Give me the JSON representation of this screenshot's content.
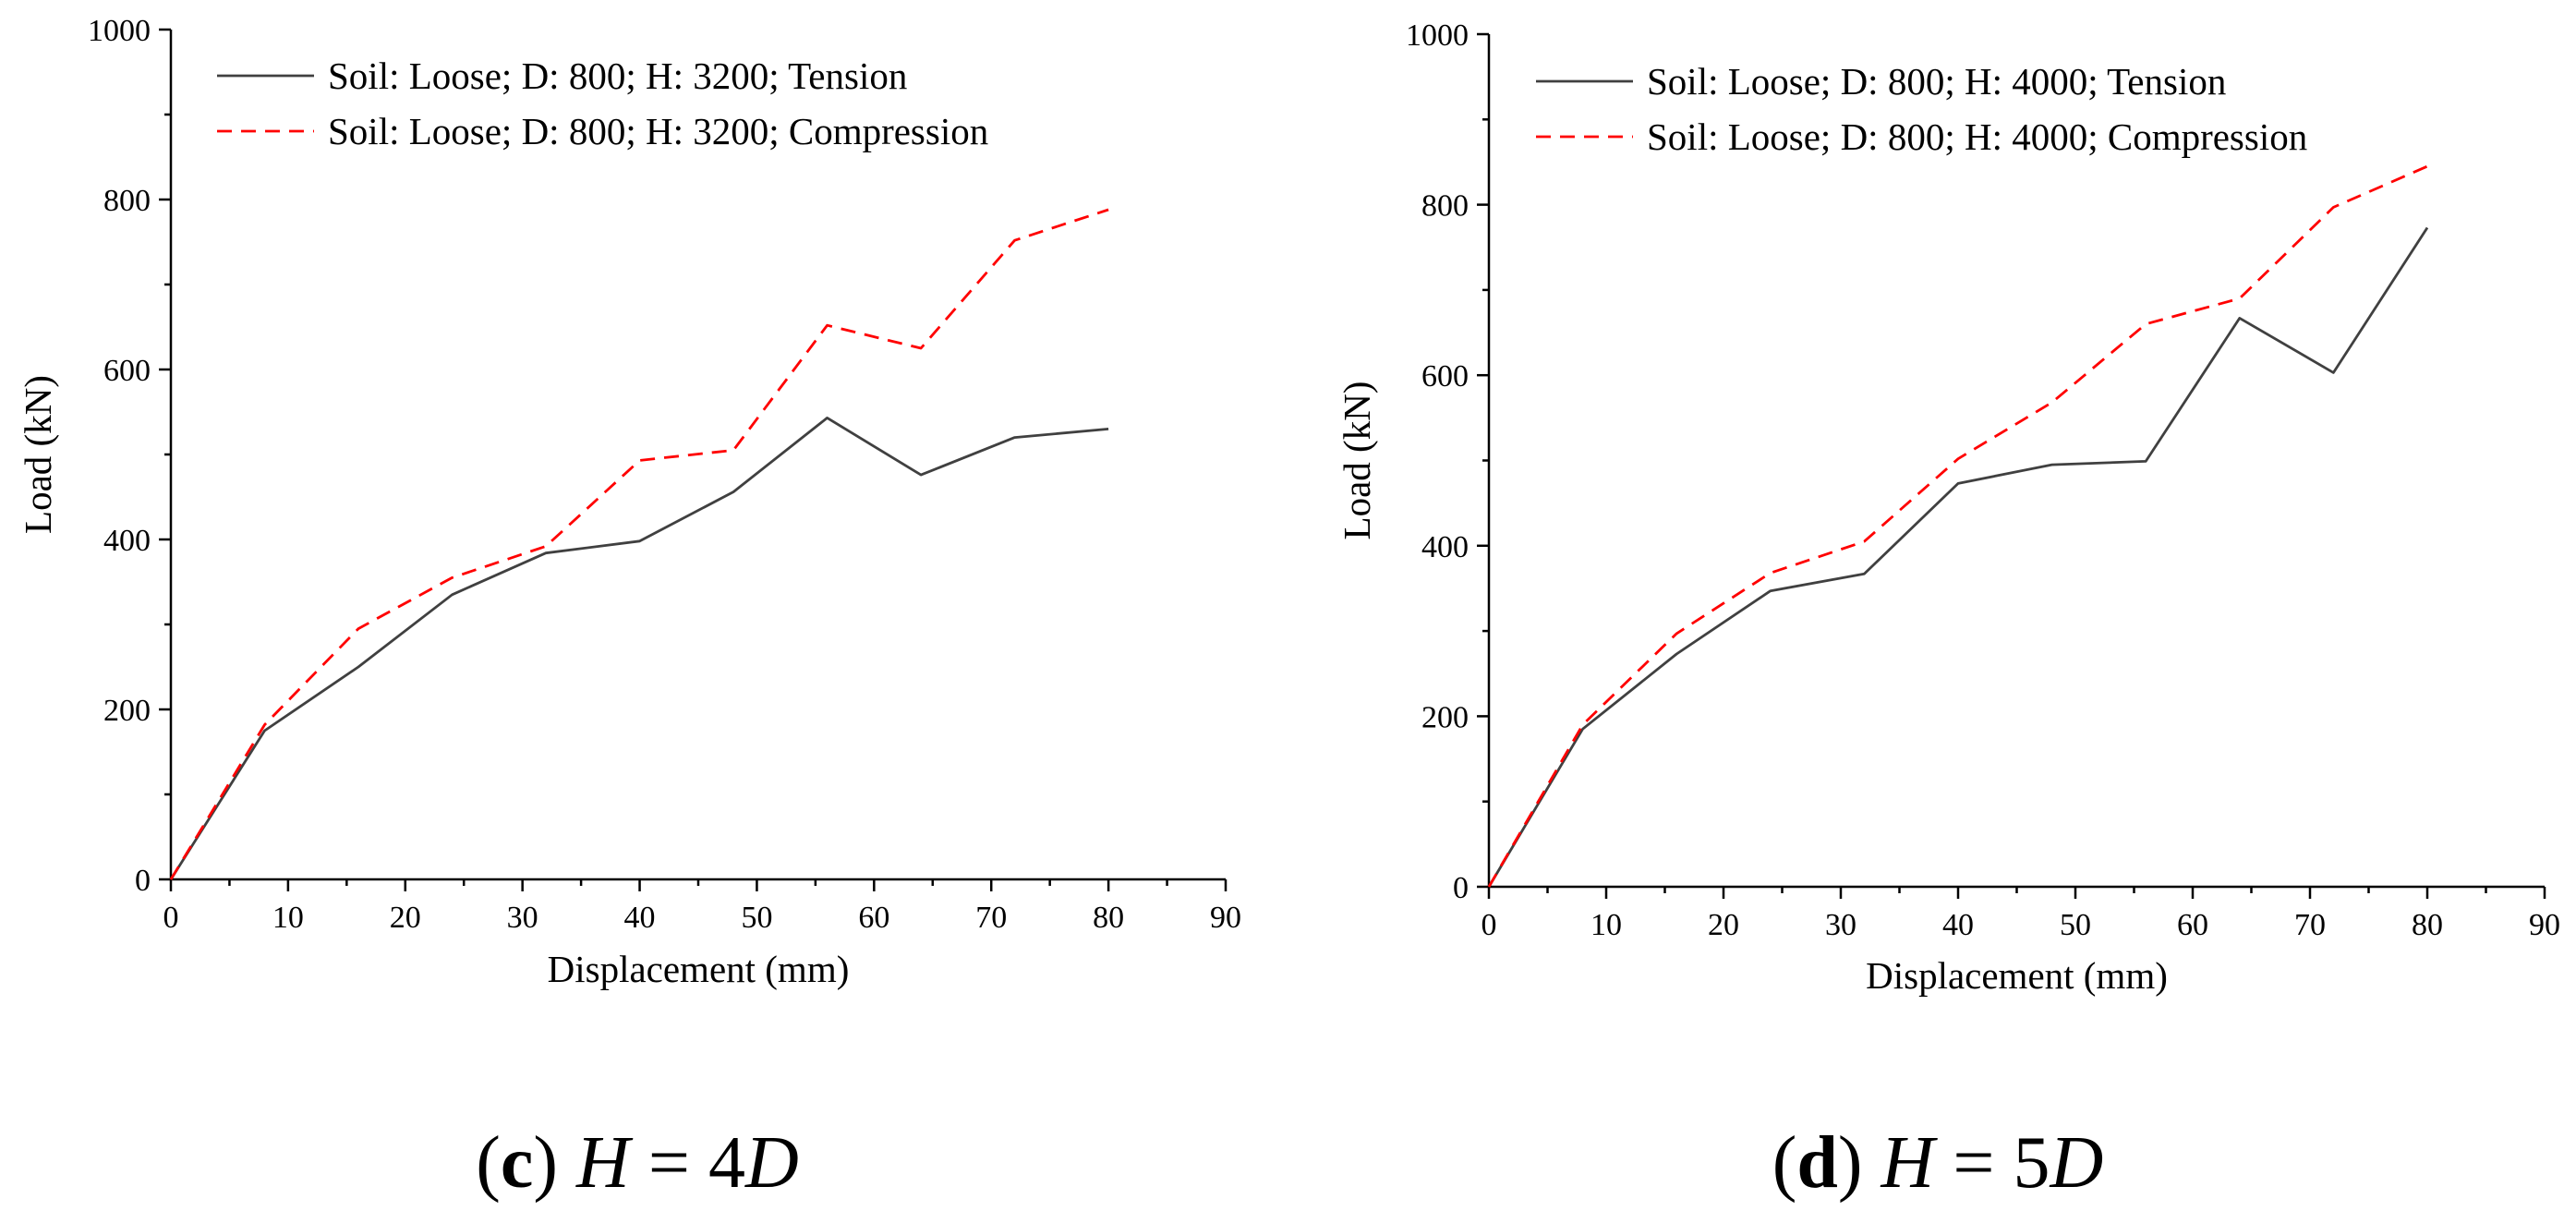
{
  "chart_data": [
    {
      "id": "c",
      "type": "line",
      "caption": {
        "letter": "c",
        "variable": "H",
        "equals": "=",
        "coef": "4",
        "unit": "D"
      },
      "xlabel": "Displacement (mm)",
      "ylabel": "Load (kN)",
      "xlim": [
        0,
        90
      ],
      "ylim": [
        0,
        1000
      ],
      "xticks": [
        0,
        10,
        20,
        30,
        40,
        50,
        60,
        70,
        80,
        90
      ],
      "yticks": [
        0,
        200,
        400,
        600,
        800,
        1000
      ],
      "grid": false,
      "legend_position": "top-left",
      "series": [
        {
          "name": "Soil: Loose; D: 800; H: 3200; Tension",
          "color": "#404040",
          "style": "solid",
          "x": [
            0,
            8,
            16,
            24,
            32,
            40,
            48,
            56,
            64,
            72,
            80
          ],
          "y": [
            0,
            175,
            250,
            335,
            384,
            398,
            456,
            543,
            476,
            520,
            530
          ]
        },
        {
          "name": "Soil: Loose; D: 800; H: 3200; Compression",
          "color": "#ff0000",
          "style": "dashed",
          "x": [
            0,
            8,
            16,
            24,
            32,
            40,
            48,
            56,
            64,
            72,
            80
          ],
          "y": [
            0,
            182,
            295,
            355,
            392,
            493,
            505,
            652,
            625,
            752,
            788
          ]
        }
      ]
    },
    {
      "id": "d",
      "type": "line",
      "caption": {
        "letter": "d",
        "variable": "H",
        "equals": "=",
        "coef": "5",
        "unit": "D"
      },
      "xlabel": "Displacement (mm)",
      "ylabel": "Load (kN)",
      "xlim": [
        0,
        90
      ],
      "ylim": [
        0,
        1000
      ],
      "xticks": [
        0,
        10,
        20,
        30,
        40,
        50,
        60,
        70,
        80,
        90
      ],
      "yticks": [
        0,
        200,
        400,
        600,
        800,
        1000
      ],
      "grid": false,
      "legend_position": "top-left",
      "series": [
        {
          "name": "Soil: Loose; D: 800; H: 4000; Tension",
          "color": "#404040",
          "style": "solid",
          "x": [
            0,
            8,
            16,
            24,
            32,
            40,
            48,
            56,
            64,
            72,
            80
          ],
          "y": [
            0,
            185,
            273,
            347,
            367,
            473,
            495,
            499,
            667,
            603,
            773
          ]
        },
        {
          "name": "Soil: Loose; D: 800; H: 4000; Compression",
          "color": "#ff0000",
          "style": "dashed",
          "x": [
            0,
            8,
            16,
            24,
            32,
            40,
            48,
            56,
            64,
            72,
            80
          ],
          "y": [
            0,
            190,
            297,
            368,
            405,
            502,
            568,
            660,
            690,
            797,
            845
          ]
        }
      ]
    }
  ]
}
